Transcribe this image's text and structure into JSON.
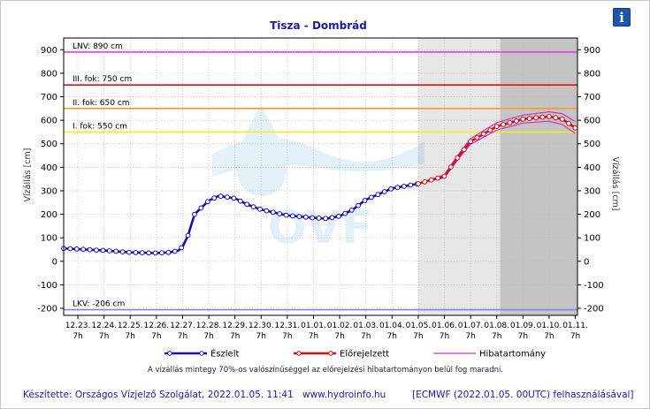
{
  "info_button": "i",
  "footer": {
    "credit": "Készítette: Országos Vízjelző Szolgálat, 2022.01.05. 11:41",
    "site": "www.hydroinfo.hu",
    "source": "[ECMWF (2022.01.05. 00UTC) felhasználásával]"
  },
  "note": "A vízállás mintegy 70%-os valószínűséggel az előrejelzési hibatartományon belül fog maradni.",
  "watermark": "OVF",
  "chart_data": {
    "type": "line",
    "title": "Tisza - Dombrád",
    "ylabel_left": "Vízállás [cm]",
    "ylabel_right": "Vízállás [cm]",
    "ylim": [
      -230,
      950
    ],
    "yticks": [
      -200,
      -100,
      0,
      100,
      200,
      300,
      400,
      500,
      600,
      700,
      800,
      900
    ],
    "x_range_days": [
      "2021-12-22 18:00",
      "2022-01-11 09:00"
    ],
    "x_ticks": [
      {
        "date": "12.23.",
        "time": "7h"
      },
      {
        "date": "12.24.",
        "time": "7h"
      },
      {
        "date": "12.25.",
        "time": "7h"
      },
      {
        "date": "12.26.",
        "time": "7h"
      },
      {
        "date": "12.27.",
        "time": "7h"
      },
      {
        "date": "12.28.",
        "time": "7h"
      },
      {
        "date": "12.29.",
        "time": "7h"
      },
      {
        "date": "12.30.",
        "time": "7h"
      },
      {
        "date": "12.31.",
        "time": "7h"
      },
      {
        "date": "01.01.",
        "time": "7h"
      },
      {
        "date": "01.02.",
        "time": "7h"
      },
      {
        "date": "01.03.",
        "time": "7h"
      },
      {
        "date": "01.04.",
        "time": "7h"
      },
      {
        "date": "01.05.",
        "time": "7h"
      },
      {
        "date": "01.06.",
        "time": "7h"
      },
      {
        "date": "01.07.",
        "time": "7h"
      },
      {
        "date": "01.08.",
        "time": "7h"
      },
      {
        "date": "01.09.",
        "time": "7h"
      },
      {
        "date": "01.10.",
        "time": "7h"
      },
      {
        "date": "01.11.",
        "time": "7h"
      }
    ],
    "shading": {
      "forecast_start": "2022-01-05 07:00",
      "ecmwf_start": "2022-01-08 10:00"
    },
    "thresholds": [
      {
        "label": "LNV: 890 cm",
        "value": 890,
        "color": "#e040e0"
      },
      {
        "label": "III. fok: 750 cm",
        "value": 750,
        "color": "#e01010"
      },
      {
        "label": "II. fok: 650 cm",
        "value": 650,
        "color": "#f0a020"
      },
      {
        "label": "I. fok: 550 cm",
        "value": 550,
        "color": "#f0f020"
      },
      {
        "label": "LKV: -206 cm",
        "value": -206,
        "color": "#8080f0"
      }
    ],
    "legend": [
      "Észlelt",
      "Előrejelzett",
      "Hibatartomány"
    ],
    "series": [
      {
        "name": "Észlelt",
        "color": "#1010b0",
        "points": [
          [
            "2021-12-22 18:00",
            55
          ],
          [
            "2021-12-23 07:00",
            52
          ],
          [
            "2021-12-24 07:00",
            46
          ],
          [
            "2021-12-25 07:00",
            38
          ],
          [
            "2021-12-26 07:00",
            35
          ],
          [
            "2021-12-26 19:00",
            38
          ],
          [
            "2021-12-27 03:00",
            45
          ],
          [
            "2021-12-27 07:00",
            62
          ],
          [
            "2021-12-27 12:00",
            110
          ],
          [
            "2021-12-27 18:00",
            200
          ],
          [
            "2021-12-28 07:00",
            258
          ],
          [
            "2021-12-28 16:00",
            278
          ],
          [
            "2021-12-29 07:00",
            268
          ],
          [
            "2021-12-29 19:00",
            240
          ],
          [
            "2021-12-30 07:00",
            220
          ],
          [
            "2021-12-31 07:00",
            195
          ],
          [
            "2022-01-01 07:00",
            185
          ],
          [
            "2022-01-01 19:00",
            182
          ],
          [
            "2022-01-02 07:00",
            192
          ],
          [
            "2022-01-02 19:00",
            220
          ],
          [
            "2022-01-03 07:00",
            262
          ],
          [
            "2022-01-04 07:00",
            310
          ],
          [
            "2022-01-05 07:00",
            330
          ]
        ]
      },
      {
        "name": "Előrejelzett",
        "color": "#d01010",
        "points": [
          [
            "2022-01-05 07:00",
            330
          ],
          [
            "2022-01-06 07:00",
            362
          ],
          [
            "2022-01-06 19:00",
            440
          ],
          [
            "2022-01-07 07:00",
            510
          ],
          [
            "2022-01-08 07:00",
            574
          ],
          [
            "2022-01-09 07:00",
            605
          ],
          [
            "2022-01-10 07:00",
            616
          ],
          [
            "2022-01-10 19:00",
            605
          ],
          [
            "2022-01-11 07:00",
            568
          ]
        ]
      },
      {
        "name": "Hibatartomány",
        "color": "#d030d0",
        "upper": [
          [
            "2022-01-05 07:00",
            330
          ],
          [
            "2022-01-06 07:00",
            368
          ],
          [
            "2022-01-06 19:00",
            450
          ],
          [
            "2022-01-07 07:00",
            522
          ],
          [
            "2022-01-08 07:00",
            590
          ],
          [
            "2022-01-09 07:00",
            622
          ],
          [
            "2022-01-10 07:00",
            636
          ],
          [
            "2022-01-10 19:00",
            628
          ],
          [
            "2022-01-11 07:00",
            594
          ]
        ],
        "lower": [
          [
            "2022-01-05 07:00",
            330
          ],
          [
            "2022-01-06 07:00",
            356
          ],
          [
            "2022-01-06 19:00",
            430
          ],
          [
            "2022-01-07 07:00",
            498
          ],
          [
            "2022-01-08 07:00",
            558
          ],
          [
            "2022-01-09 07:00",
            588
          ],
          [
            "2022-01-10 07:00",
            596
          ],
          [
            "2022-01-10 19:00",
            582
          ],
          [
            "2022-01-11 07:00",
            544
          ]
        ]
      }
    ]
  }
}
